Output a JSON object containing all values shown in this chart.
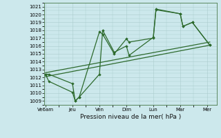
{
  "background_color": "#cce8ec",
  "grid_color": "#aacccc",
  "line_color": "#2d6a2d",
  "marker_color": "#2d6a2d",
  "xlabel": "Pression niveau de la mer( hPa )",
  "ylim": [
    1008.5,
    1021.5
  ],
  "yticks": [
    1009,
    1010,
    1011,
    1012,
    1013,
    1014,
    1015,
    1016,
    1017,
    1018,
    1019,
    1020,
    1021
  ],
  "xtick_labels": [
    "Ve6am",
    "Jeu",
    "Ven",
    "Dim",
    "Lun",
    "Mar",
    "Mer"
  ],
  "xtick_positions": [
    0,
    1,
    2,
    3,
    4,
    5,
    6
  ],
  "xlim": [
    -0.05,
    6.35
  ],
  "line1_x": [
    0.0,
    0.12,
    1.0,
    1.1,
    1.25,
    2.0,
    2.12,
    2.55,
    3.0,
    3.1,
    4.0,
    4.1,
    5.0,
    5.1,
    5.45,
    6.1
  ],
  "line1_y": [
    1012.4,
    1012.4,
    1011.2,
    1009.0,
    1009.5,
    1017.8,
    1017.5,
    1015.0,
    1016.9,
    1016.5,
    1017.0,
    1020.6,
    1020.1,
    1018.5,
    1019.0,
    1016.1
  ],
  "line2_x": [
    0.0,
    0.12,
    1.0,
    1.1,
    1.25,
    2.0,
    2.12,
    2.55,
    3.0,
    3.1,
    4.0,
    4.1,
    5.0,
    5.1,
    5.45,
    6.1
  ],
  "line2_y": [
    1012.4,
    1011.5,
    1010.1,
    1009.0,
    1009.5,
    1012.4,
    1018.0,
    1015.2,
    1016.0,
    1014.8,
    1017.1,
    1020.7,
    1020.1,
    1018.5,
    1019.0,
    1016.1
  ],
  "trend_x": [
    0.0,
    6.1
  ],
  "trend_y": [
    1012.1,
    1016.1
  ],
  "trend2_x": [
    0.0,
    6.1
  ],
  "trend2_y": [
    1012.6,
    1016.5
  ]
}
